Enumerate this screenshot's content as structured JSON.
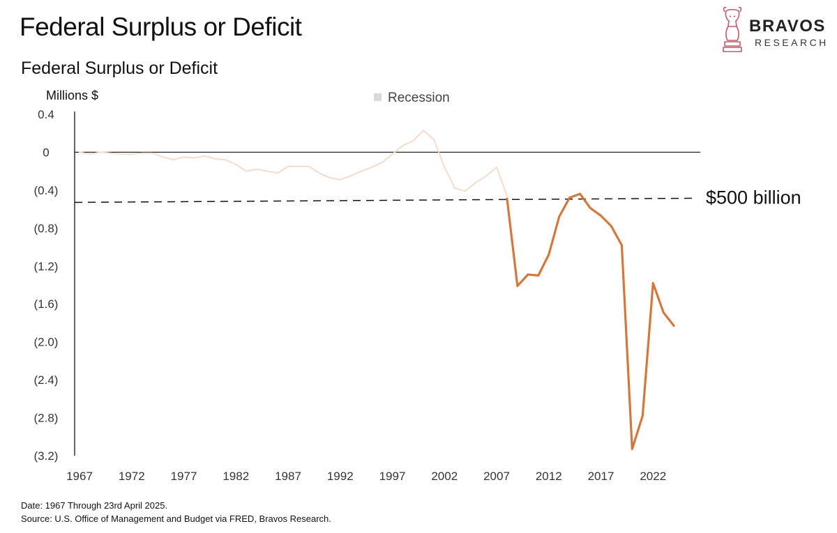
{
  "header": {
    "title": "Federal Surplus or Deficit",
    "subtitle": "Federal Surplus or Deficit"
  },
  "logo": {
    "name": "BRAVOS",
    "sub": "RESEARCH",
    "color": "#c0596a"
  },
  "chart_data": {
    "type": "line",
    "unit_label": "Millions $",
    "legend": [
      "Recession"
    ],
    "ylim": [
      -3.2,
      0.4
    ],
    "y_ticks": [
      {
        "value": 0.4,
        "label": "0.4"
      },
      {
        "value": 0,
        "label": "0"
      },
      {
        "value": -0.4,
        "label": "(0.4)"
      },
      {
        "value": -0.8,
        "label": "(0.8)"
      },
      {
        "value": -1.2,
        "label": "(1.2)"
      },
      {
        "value": -1.6,
        "label": "(1.6)"
      },
      {
        "value": -2.0,
        "label": "(2.0)"
      },
      {
        "value": -2.4,
        "label": "(2.4)"
      },
      {
        "value": -2.8,
        "label": "(2.8)"
      },
      {
        "value": -3.2,
        "label": "(3.2)"
      }
    ],
    "x_ticks": [
      1967,
      1972,
      1977,
      1982,
      1987,
      1992,
      1997,
      2002,
      2007,
      2012,
      2017,
      2022
    ],
    "xlim": [
      1967,
      2027
    ],
    "reference_line": {
      "value": -0.5,
      "label": "$500 billion"
    },
    "series": [
      {
        "color": "#f2dccd",
        "points": [
          [
            1967,
            0.0
          ],
          [
            1968,
            -0.02
          ],
          [
            1969,
            0.0
          ],
          [
            1970,
            -0.01
          ],
          [
            1971,
            -0.02
          ],
          [
            1972,
            -0.02
          ],
          [
            1973,
            -0.01
          ],
          [
            1974,
            -0.01
          ],
          [
            1975,
            -0.05
          ],
          [
            1976,
            -0.08
          ],
          [
            1977,
            -0.05
          ],
          [
            1978,
            -0.06
          ],
          [
            1979,
            -0.04
          ],
          [
            1980,
            -0.07
          ],
          [
            1981,
            -0.08
          ],
          [
            1982,
            -0.13
          ],
          [
            1983,
            -0.2
          ],
          [
            1984,
            -0.18
          ],
          [
            1985,
            -0.2
          ],
          [
            1986,
            -0.22
          ],
          [
            1987,
            -0.15
          ],
          [
            1988,
            -0.15
          ],
          [
            1989,
            -0.15
          ],
          [
            1990,
            -0.22
          ],
          [
            1991,
            -0.27
          ],
          [
            1992,
            -0.29
          ],
          [
            1993,
            -0.25
          ],
          [
            1994,
            -0.2
          ],
          [
            1995,
            -0.16
          ],
          [
            1996,
            -0.11
          ],
          [
            1997,
            -0.02
          ],
          [
            1998,
            0.07
          ],
          [
            1999,
            0.12
          ],
          [
            2000,
            0.23
          ],
          [
            2001,
            0.13
          ],
          [
            2002,
            -0.16
          ],
          [
            2003,
            -0.38
          ],
          [
            2004,
            -0.41
          ],
          [
            2005,
            -0.32
          ],
          [
            2006,
            -0.25
          ],
          [
            2007,
            -0.16
          ],
          [
            2008,
            -0.46
          ]
        ]
      },
      {
        "color": "#d4773c",
        "points": [
          [
            2008,
            -0.49
          ],
          [
            2009,
            -1.41
          ],
          [
            2010,
            -1.29
          ],
          [
            2011,
            -1.3
          ],
          [
            2012,
            -1.08
          ],
          [
            2013,
            -0.68
          ],
          [
            2014,
            -0.48
          ],
          [
            2015,
            -0.44
          ],
          [
            2016,
            -0.59
          ],
          [
            2017,
            -0.67
          ],
          [
            2018,
            -0.78
          ],
          [
            2019,
            -0.98
          ],
          [
            2020,
            -3.13
          ],
          [
            2021,
            -2.78
          ],
          [
            2022,
            -1.38
          ],
          [
            2023,
            -1.69
          ],
          [
            2024,
            -1.83
          ]
        ]
      }
    ]
  },
  "footer": {
    "date_note": "Date: 1967 Through 23rd April 2025.",
    "source_note": "Source: U.S. Office of Management and Budget via FRED, Bravos Research."
  }
}
